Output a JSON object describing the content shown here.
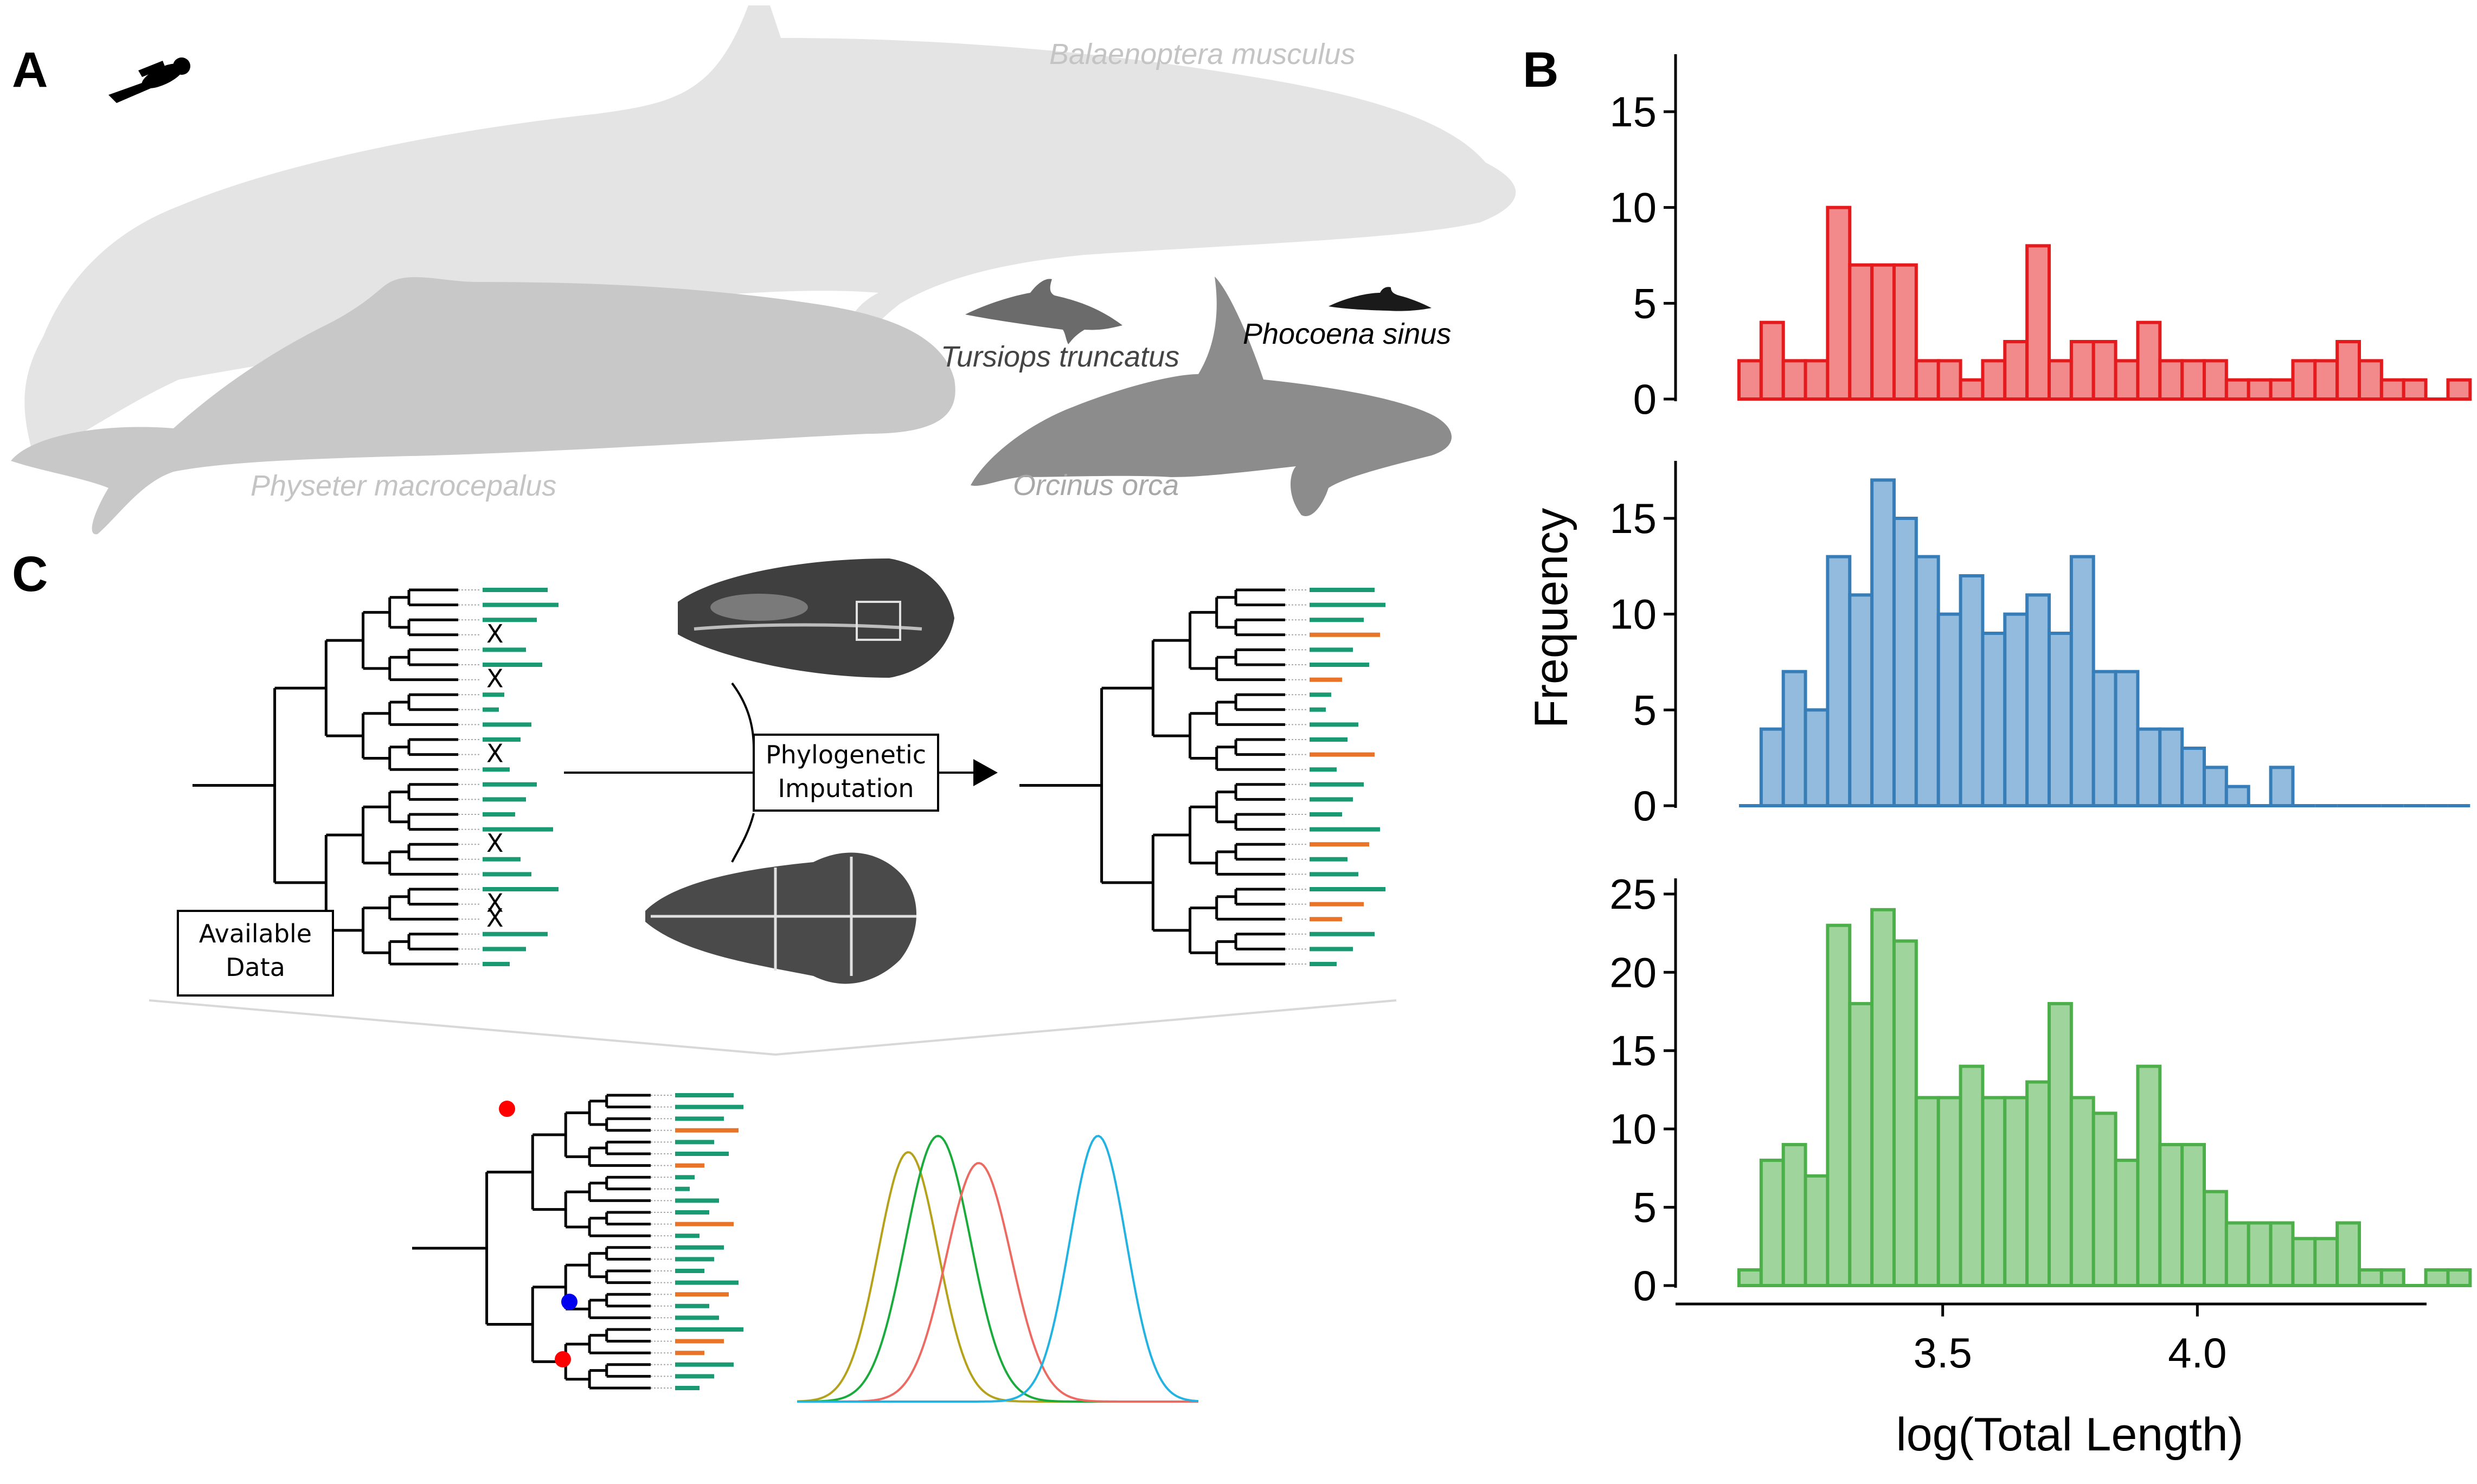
{
  "panel_labels": {
    "a": "A",
    "b": "B",
    "c": "C"
  },
  "species": {
    "blue_whale": "Balaenoptera musculus",
    "sperm_whale": "Physeter macrocepalus",
    "dolphin": "Tursiops truncatus",
    "porpoise": "Phocoena sinus",
    "orca": "Orcinus orca"
  },
  "panel_c": {
    "available_line1": "Available",
    "available_line2": "Data",
    "imputation_line1": "Phylogenetic",
    "imputation_line2": "Imputation",
    "missing_marker": "X",
    "colors": {
      "observed": "#1a9a73",
      "imputed": "#e8742a",
      "node_red": "#ff0000",
      "node_blue": "#0000ee"
    }
  },
  "chart_data": {
    "type": "bar",
    "xlabel": "log(Total Length)",
    "ylabel": "Frequency",
    "x_ticks": [
      "3.5",
      "4.0"
    ],
    "x_tick_values": [
      3.5,
      4.0
    ],
    "xlim": [
      3.05,
      4.45
    ],
    "bin_start": 3.1,
    "bin_width": 0.0435,
    "series": [
      {
        "color": "#e41a1c",
        "fill": "#f2898b",
        "values": [
          2,
          4,
          2,
          2,
          10,
          7,
          7,
          7,
          2,
          2,
          1,
          2,
          3,
          8,
          2,
          3,
          3,
          2,
          4,
          2,
          2,
          2,
          1,
          1,
          1,
          2,
          2,
          3,
          2,
          1,
          1,
          0,
          1
        ],
        "ylim": [
          0,
          18
        ],
        "y_ticks": [
          0,
          5,
          10,
          15
        ]
      },
      {
        "color": "#377eb8",
        "fill": "#92bbdd",
        "values": [
          0,
          4,
          7,
          5,
          13,
          11,
          17,
          15,
          13,
          10,
          12,
          9,
          10,
          11,
          9,
          13,
          7,
          7,
          4,
          4,
          3,
          2,
          1,
          0,
          2,
          0,
          0,
          0,
          0,
          0,
          0,
          0,
          0
        ],
        "ylim": [
          0,
          18
        ],
        "y_ticks": [
          0,
          5,
          10,
          15
        ]
      },
      {
        "color": "#4daf4a",
        "fill": "#9fd59c",
        "values": [
          1,
          8,
          9,
          7,
          23,
          18,
          24,
          22,
          12,
          12,
          14,
          12,
          12,
          13,
          18,
          12,
          11,
          8,
          14,
          9,
          9,
          6,
          4,
          4,
          4,
          3,
          3,
          4,
          1,
          1,
          0,
          1,
          1
        ],
        "ylim": [
          0,
          26
        ],
        "y_ticks": [
          0,
          5,
          10,
          15,
          20,
          25
        ]
      }
    ]
  }
}
